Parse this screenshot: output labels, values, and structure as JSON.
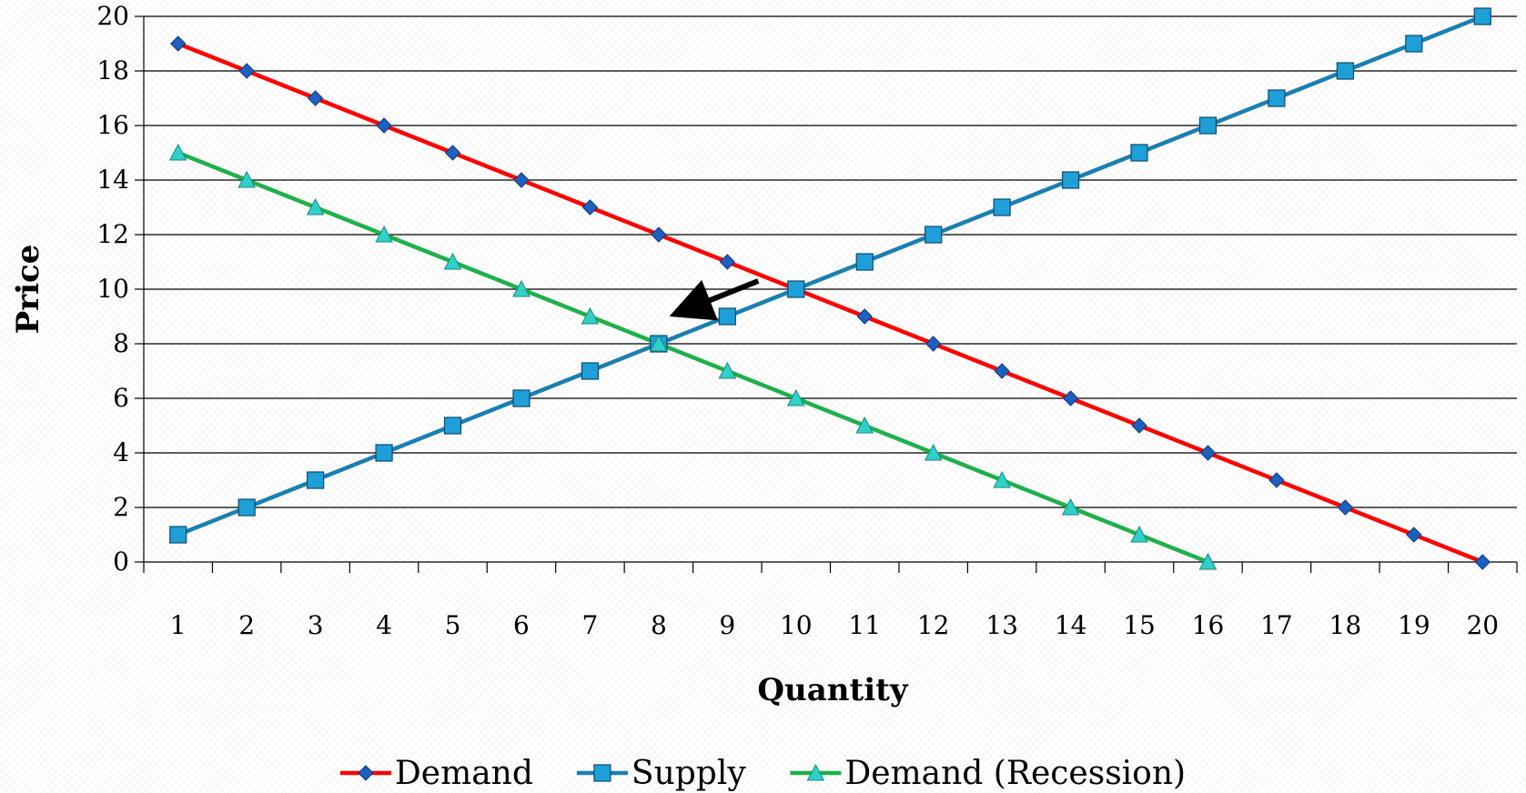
{
  "chart_data": {
    "type": "line",
    "title": "",
    "xlabel": "Quantity",
    "ylabel": "Price",
    "categories": [
      "1",
      "2",
      "3",
      "4",
      "5",
      "6",
      "7",
      "8",
      "9",
      "10",
      "11",
      "12",
      "13",
      "14",
      "15",
      "16",
      "17",
      "18",
      "19",
      "20"
    ],
    "y_ticks": [
      "0",
      "2",
      "4",
      "6",
      "8",
      "10",
      "12",
      "14",
      "16",
      "18",
      "20"
    ],
    "ylim": [
      0,
      20
    ],
    "grid": "horizontal",
    "legend": "bottom",
    "series": [
      {
        "name": "Demand",
        "color": "#ff0000",
        "marker": "diamond",
        "marker_color": "#1f5fbf",
        "values": [
          19,
          18,
          17,
          16,
          15,
          14,
          13,
          12,
          11,
          10,
          9,
          8,
          7,
          6,
          5,
          4,
          3,
          2,
          1,
          0
        ]
      },
      {
        "name": "Supply",
        "color": "#1b7fb0",
        "marker": "square",
        "marker_color": "#1f9fd8",
        "values": [
          1,
          2,
          3,
          4,
          5,
          6,
          7,
          8,
          9,
          10,
          11,
          12,
          13,
          14,
          15,
          16,
          17,
          18,
          19,
          20
        ]
      },
      {
        "name": "Demand (Recession)",
        "color": "#1fb04a",
        "marker": "triangle",
        "marker_color": "#2fd0c8",
        "values": [
          15,
          14,
          13,
          12,
          11,
          10,
          9,
          8,
          7,
          6,
          5,
          4,
          3,
          2,
          1,
          0,
          null,
          null,
          null,
          null
        ]
      }
    ],
    "annotations": [
      {
        "type": "arrow",
        "description": "shift arrow",
        "from": {
          "x": 9.45,
          "y": 10.3
        },
        "to": {
          "x": 8.45,
          "y": 9.3
        },
        "color": "#000000"
      }
    ]
  }
}
